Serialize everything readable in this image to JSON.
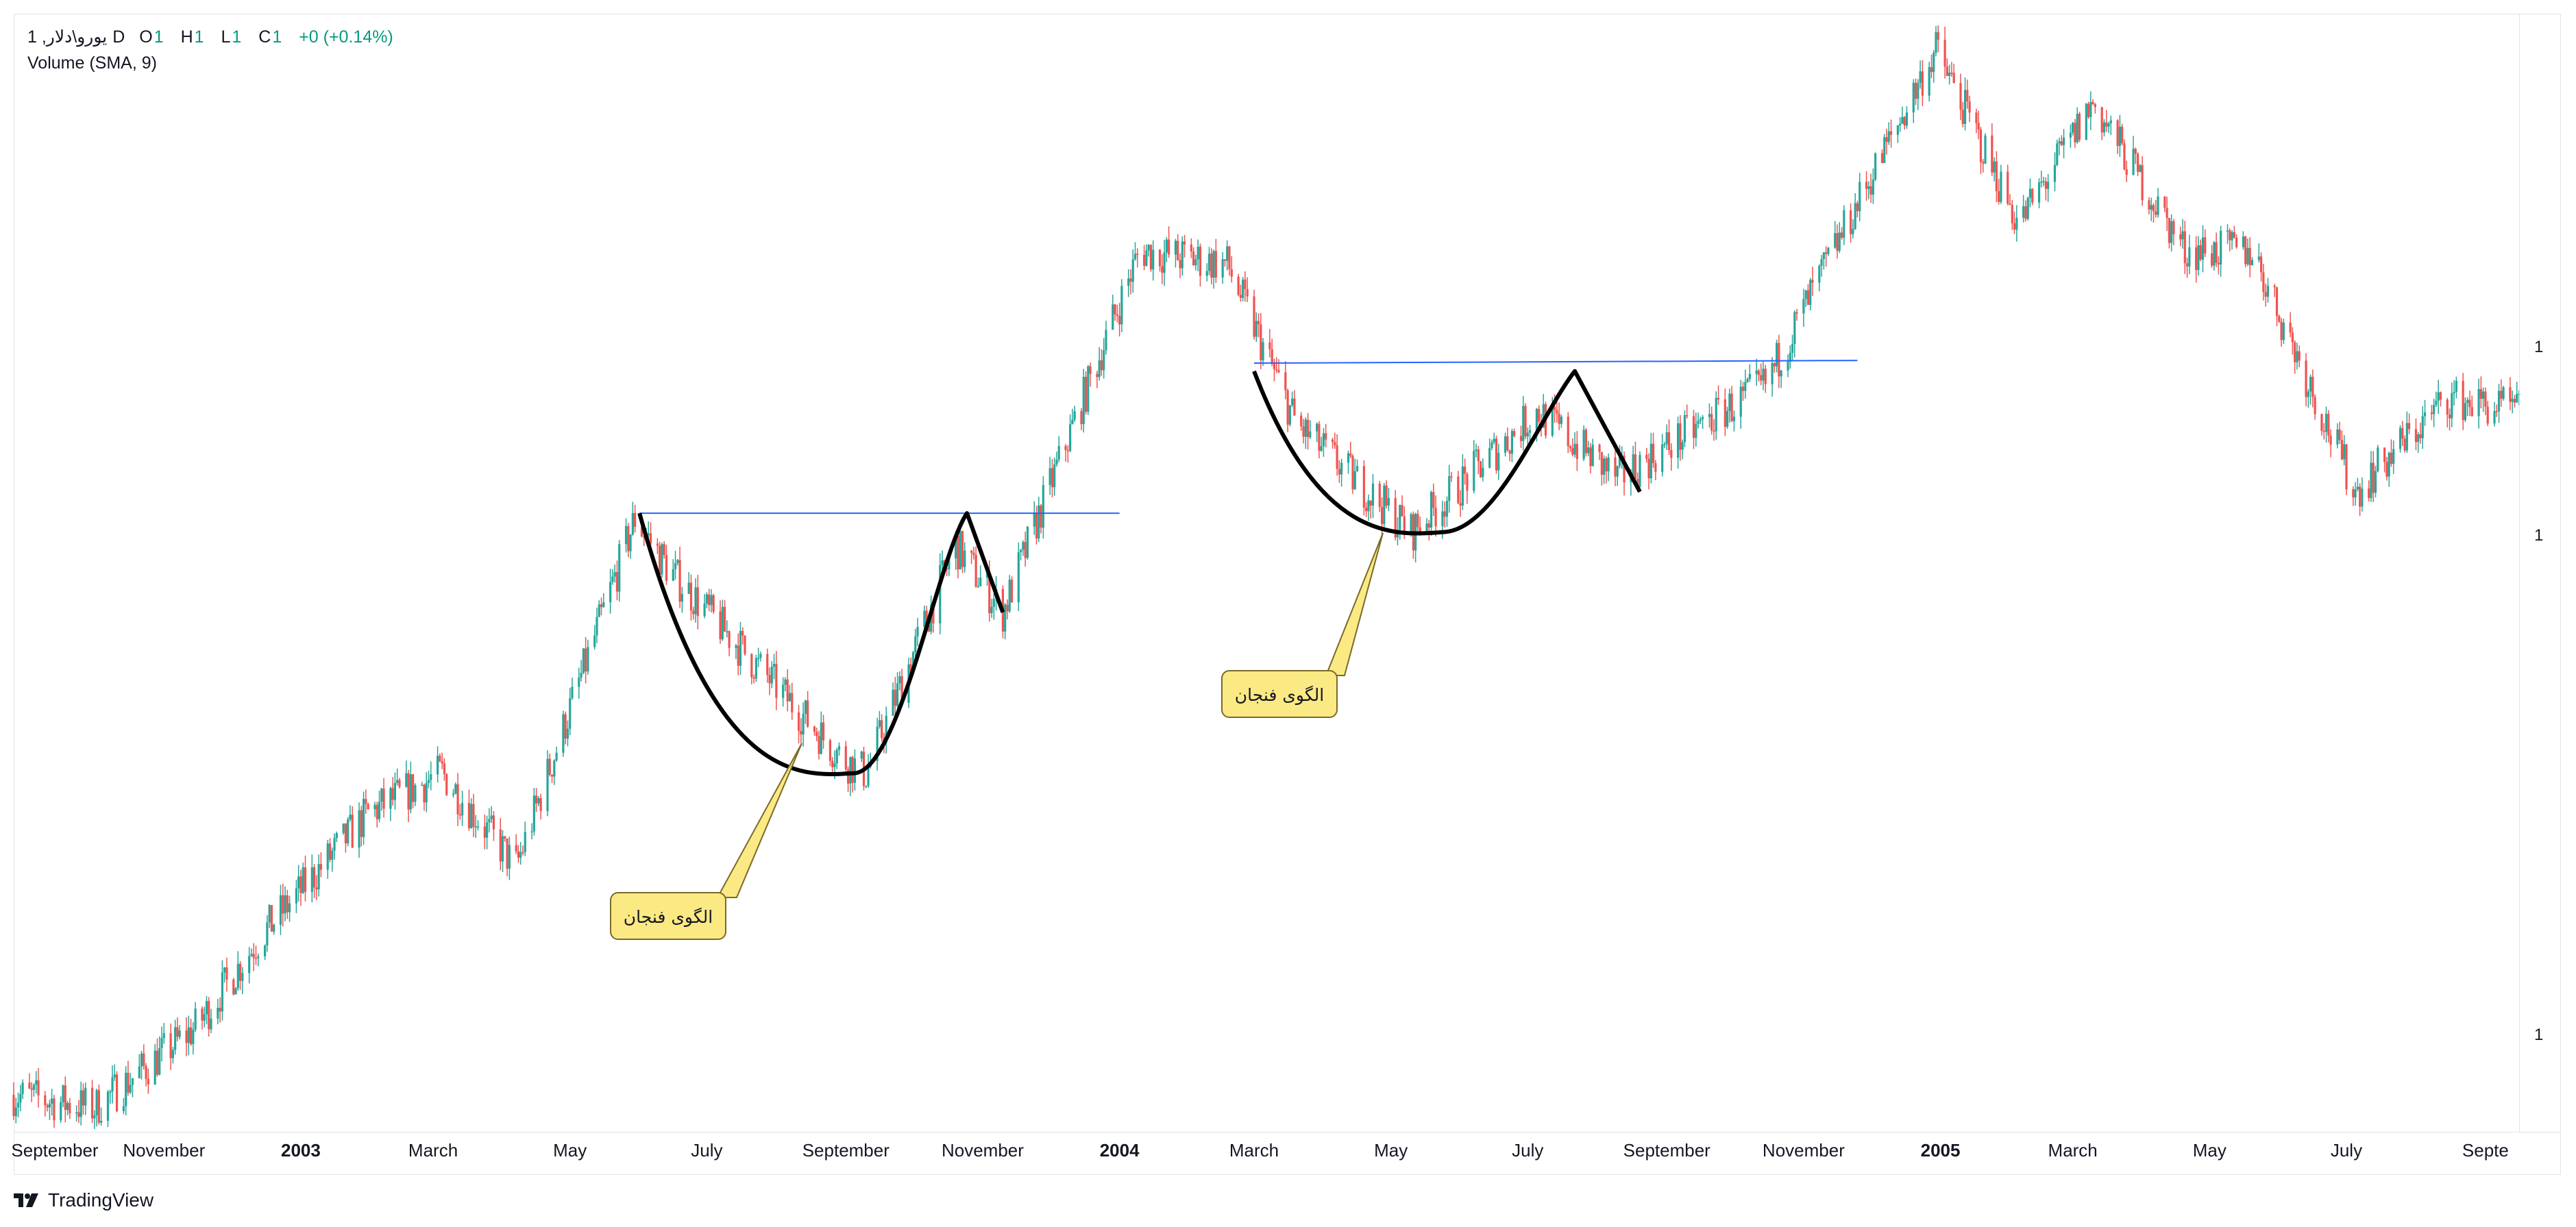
{
  "legend": {
    "symbol": "1 ,یورو\\دلار",
    "interval": "D",
    "open_key": "O",
    "open_val": "1",
    "high_key": "H",
    "high_val": "1",
    "low_key": "L",
    "low_val": "1",
    "close_key": "C",
    "close_val": "1",
    "change": "+0 (+0.14%)",
    "volume": "Volume (SMA, 9)"
  },
  "price_axis": {
    "labels": [
      "1",
      "1",
      "1"
    ]
  },
  "time_axis": {
    "labels": [
      {
        "text": "September",
        "year": false
      },
      {
        "text": "November",
        "year": false
      },
      {
        "text": "2003",
        "year": true
      },
      {
        "text": "March",
        "year": false
      },
      {
        "text": "May",
        "year": false
      },
      {
        "text": "July",
        "year": false
      },
      {
        "text": "September",
        "year": false
      },
      {
        "text": "November",
        "year": false
      },
      {
        "text": "2004",
        "year": true
      },
      {
        "text": "March",
        "year": false
      },
      {
        "text": "May",
        "year": false
      },
      {
        "text": "July",
        "year": false
      },
      {
        "text": "September",
        "year": false
      },
      {
        "text": "November",
        "year": false
      },
      {
        "text": "2005",
        "year": true
      },
      {
        "text": "March",
        "year": false
      },
      {
        "text": "May",
        "year": false
      },
      {
        "text": "July",
        "year": false
      },
      {
        "text": "Septe",
        "year": false
      }
    ]
  },
  "annotations": {
    "callout1": "الگوی فنجان",
    "callout2": "الگوی فنجان"
  },
  "footer": {
    "brand": "TradingView"
  },
  "colors": {
    "up": "#26a69a",
    "down": "#ef5350",
    "trendline": "#2962ff",
    "callout_bg": "#fbe983",
    "pattern_line": "#000000"
  },
  "chart_data": {
    "type": "candlestick",
    "note_units": "normalized price (axis labels only show 1)",
    "x_start": "2002-08-26",
    "x_end": "2005-09-16",
    "waypoints": [
      {
        "date": "2002-08-26",
        "price": 0.975
      },
      {
        "date": "2002-10-01",
        "price": 0.97
      },
      {
        "date": "2002-11-15",
        "price": 1.0
      },
      {
        "date": "2002-12-15",
        "price": 1.035
      },
      {
        "date": "2003-01-31",
        "price": 1.08
      },
      {
        "date": "2003-03-05",
        "price": 1.095
      },
      {
        "date": "2003-04-07",
        "price": 1.06
      },
      {
        "date": "2003-05-30",
        "price": 1.19
      },
      {
        "date": "2003-06-15",
        "price": 1.17
      },
      {
        "date": "2003-08-31",
        "price": 1.1
      },
      {
        "date": "2003-09-10",
        "price": 1.095
      },
      {
        "date": "2003-10-20",
        "price": 1.18
      },
      {
        "date": "2003-11-10",
        "price": 1.155
      },
      {
        "date": "2003-11-30",
        "price": 1.2
      },
      {
        "date": "2004-01-10",
        "price": 1.29
      },
      {
        "date": "2004-02-18",
        "price": 1.285
      },
      {
        "date": "2004-03-20",
        "price": 1.225
      },
      {
        "date": "2004-05-10",
        "price": 1.185
      },
      {
        "date": "2004-07-05",
        "price": 1.23
      },
      {
        "date": "2004-08-10",
        "price": 1.205
      },
      {
        "date": "2004-10-15",
        "price": 1.24
      },
      {
        "date": "2004-12-30",
        "price": 1.365
      },
      {
        "date": "2005-02-05",
        "price": 1.3
      },
      {
        "date": "2005-03-10",
        "price": 1.345
      },
      {
        "date": "2005-04-20",
        "price": 1.29
      },
      {
        "date": "2005-05-20",
        "price": 1.29
      },
      {
        "date": "2005-07-05",
        "price": 1.2
      },
      {
        "date": "2005-08-15",
        "price": 1.235
      },
      {
        "date": "2005-09-16",
        "price": 1.23
      }
    ],
    "resistance_lines": [
      {
        "from": "2003-06-01",
        "to": "2004-01-01",
        "price": 1.192
      },
      {
        "from": "2004-03-01",
        "to": "2004-11-25",
        "price": 1.248
      }
    ],
    "patterns": [
      {
        "name": "cup",
        "start": "2003-06-01",
        "bottom": "2003-09-05",
        "rim": "2003-10-25",
        "end": "2003-11-10"
      },
      {
        "name": "cup",
        "start": "2004-03-01",
        "bottom": "2004-05-25",
        "rim": "2004-07-22",
        "end": "2004-08-20"
      }
    ]
  }
}
